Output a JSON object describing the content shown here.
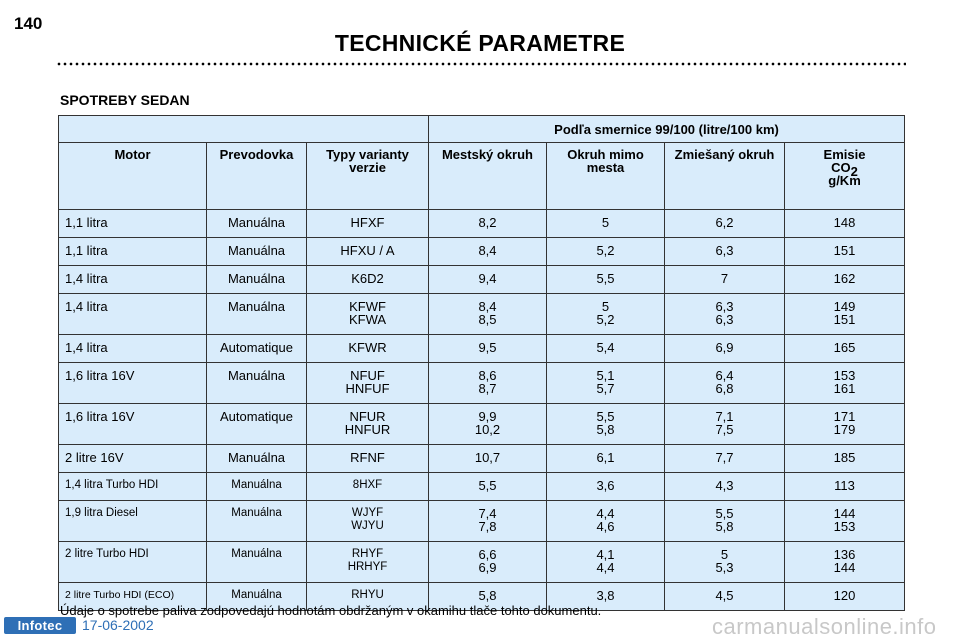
{
  "page": {
    "number": "140",
    "title": "TECHNICKÉ PARAMETRE",
    "section": "SPOTREBY SEDAN",
    "footnote": "Údaje o spotrebe paliva zodpovedajú hodnotám obdržaným v okamihu tlače tohto dokumentu.",
    "brand": "Infotec",
    "date": "17-06-2002",
    "watermark": "carmanualsonline.info"
  },
  "table": {
    "group_header": "Podľa smernice 99/100 (litre/100 km)",
    "headers": {
      "motor": "Motor",
      "prevodovka": "Prevodovka",
      "typy": "Typy varianty verzie",
      "mestsky": "Mestský okruh",
      "mimo": "Okruh mimo mesta",
      "zmiesany": "Zmiešaný okruh",
      "emisie": "Emisie",
      "co2_base": "CO",
      "co2_sub": "2",
      "emisie_unit": "g/Km"
    },
    "rows": [
      {
        "motor": "1,1 litra",
        "prevodovka": "Manuálna",
        "typ": "HFXF",
        "mestsky": "8,2",
        "mimo": "5",
        "zmiesany": "6,2",
        "emisie": "148"
      },
      {
        "motor": "1,1 litra",
        "prevodovka": "Manuálna",
        "typ": "HFXU / A",
        "mestsky": "8,4",
        "mimo": "5,2",
        "zmiesany": "6,3",
        "emisie": "151"
      },
      {
        "motor": "1,4 litra",
        "prevodovka": "Manuálna",
        "typ": "K6D2",
        "mestsky": "9,4",
        "mimo": "5,5",
        "zmiesany": "7",
        "emisie": "162"
      },
      {
        "motor": "1,4 litra",
        "prevodovka": "Manuálna",
        "typ": "KFWF",
        "typ2": "KFWA",
        "mestsky": "8,4",
        "mestsky2": "8,5",
        "mimo": "5",
        "mimo2": "5,2",
        "zmiesany": "6,3",
        "zmiesany2": "6,3",
        "emisie": "149",
        "emisie2": "151"
      },
      {
        "motor": "1,4 litra",
        "prevodovka": "Automatique",
        "typ": "KFWR",
        "mestsky": "9,5",
        "mimo": "5,4",
        "zmiesany": "6,9",
        "emisie": "165"
      },
      {
        "motor": "1,6 litra 16V",
        "prevodovka": "Manuálna",
        "typ": "NFUF",
        "typ2": "HNFUF",
        "mestsky": "8,6",
        "mestsky2": "8,7",
        "mimo": "5,1",
        "mimo2": "5,7",
        "zmiesany": "6,4",
        "zmiesany2": "6,8",
        "emisie": "153",
        "emisie2": "161"
      },
      {
        "motor": "1,6 litra 16V",
        "prevodovka": "Automatique",
        "typ": "NFUR",
        "typ2": "HNFUR",
        "mestsky": "9,9",
        "mestsky2": "10,2",
        "mimo": "5,5",
        "mimo2": "5,8",
        "zmiesany": "7,1",
        "zmiesany2": "7,5",
        "emisie": "171",
        "emisie2": "179"
      },
      {
        "motor": "2 litre 16V",
        "prevodovka": "Manuálna",
        "typ": "RFNF",
        "mestsky": "10,7",
        "mimo": "6,1",
        "zmiesany": "7,7",
        "emisie": "185"
      },
      {
        "motor": "1,4 litra Turbo HDI",
        "prevodovka": "Manuálna",
        "typ": "8HXF",
        "mestsky": "5,5",
        "mimo": "3,6",
        "zmiesany": "4,3",
        "emisie": "113"
      },
      {
        "motor": "1,9 litra Diesel",
        "prevodovka": "Manuálna",
        "typ": "WJYF",
        "typ2": "WJYU",
        "mestsky": "7,4",
        "mestsky2": "7,8",
        "mimo": "4,4",
        "mimo2": "4,6",
        "zmiesany": "5,5",
        "zmiesany2": "5,8",
        "emisie": "144",
        "emisie2": "153"
      },
      {
        "motor": "2 litre Turbo HDI",
        "prevodovka": "Manuálna",
        "typ": "RHYF",
        "typ2": "HRHYF",
        "mestsky": "6,6",
        "mestsky2": "6,9",
        "mimo": "4,1",
        "mimo2": "4,4",
        "zmiesany": "5",
        "zmiesany2": "5,3",
        "emisie": "136",
        "emisie2": "144"
      },
      {
        "motor": "2 litre Turbo HDI (ECO)",
        "prevodovka": "Manuálna",
        "typ": "RHYU",
        "mestsky": "5,8",
        "mimo": "3,8",
        "zmiesany": "4,5",
        "emisie": "120"
      }
    ]
  }
}
